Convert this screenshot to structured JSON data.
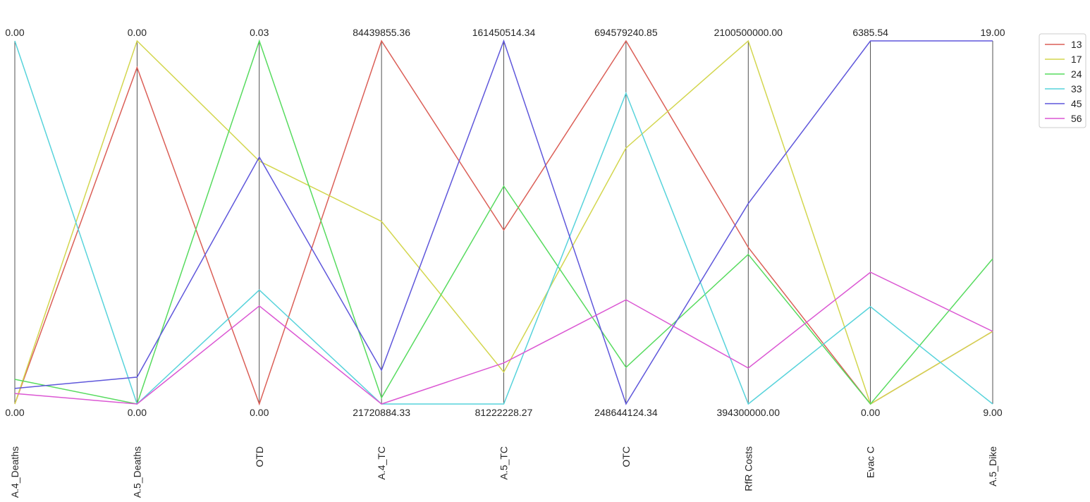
{
  "chart_data": {
    "type": "line",
    "subtype": "parallel-coordinates",
    "title": "",
    "axes": [
      {
        "name": "A.4_Deaths",
        "max": "0.00",
        "min": "0.00"
      },
      {
        "name": "A.5_Deaths",
        "max": "0.00",
        "min": "0.00"
      },
      {
        "name": "OTD",
        "max": "0.03",
        "min": "0.00"
      },
      {
        "name": "A.4_TC",
        "max": "84439855.36",
        "min": "21720884.33"
      },
      {
        "name": "A.5_TC",
        "max": "161450514.34",
        "min": "81222228.27"
      },
      {
        "name": "OTC",
        "max": "694579240.85",
        "min": "248644124.34"
      },
      {
        "name": "RfR Costs",
        "max": "2100500000.00",
        "min": "394300000.00"
      },
      {
        "name": "Evac C",
        "max": "6385.54",
        "min": "0.00"
      },
      {
        "name": "A.5_Dike",
        "max": "19.00",
        "min": "9.00"
      }
    ],
    "series": [
      {
        "name": "13",
        "color": "#db5f57",
        "values": [
          0.0,
          0.927,
          0.0,
          1.0,
          0.479,
          1.0,
          0.431,
          0.0,
          0.2
        ]
      },
      {
        "name": "17",
        "color": "#d3d64e",
        "values": [
          0.0,
          1.0,
          0.669,
          0.503,
          0.088,
          0.705,
          1.0,
          0.0,
          0.2
        ]
      },
      {
        "name": "24",
        "color": "#57db5f",
        "values": [
          0.068,
          0.0,
          1.0,
          0.017,
          0.6,
          0.101,
          0.412,
          0.0,
          0.4
        ]
      },
      {
        "name": "33",
        "color": "#57d3db",
        "values": [
          1.0,
          0.0,
          0.314,
          0.0,
          0.0,
          0.856,
          0.0,
          0.268,
          0.0
        ]
      },
      {
        "name": "45",
        "color": "#5f57db",
        "values": [
          0.043,
          0.074,
          0.68,
          0.093,
          1.0,
          0.0,
          0.552,
          1.0,
          1.0
        ]
      },
      {
        "name": "56",
        "color": "#db57d3",
        "values": [
          0.029,
          0.0,
          0.27,
          0.0,
          0.113,
          0.287,
          0.099,
          0.363,
          0.2
        ]
      }
    ],
    "ylim": [
      0,
      1
    ],
    "grid": false,
    "legend_position": "top-right"
  }
}
